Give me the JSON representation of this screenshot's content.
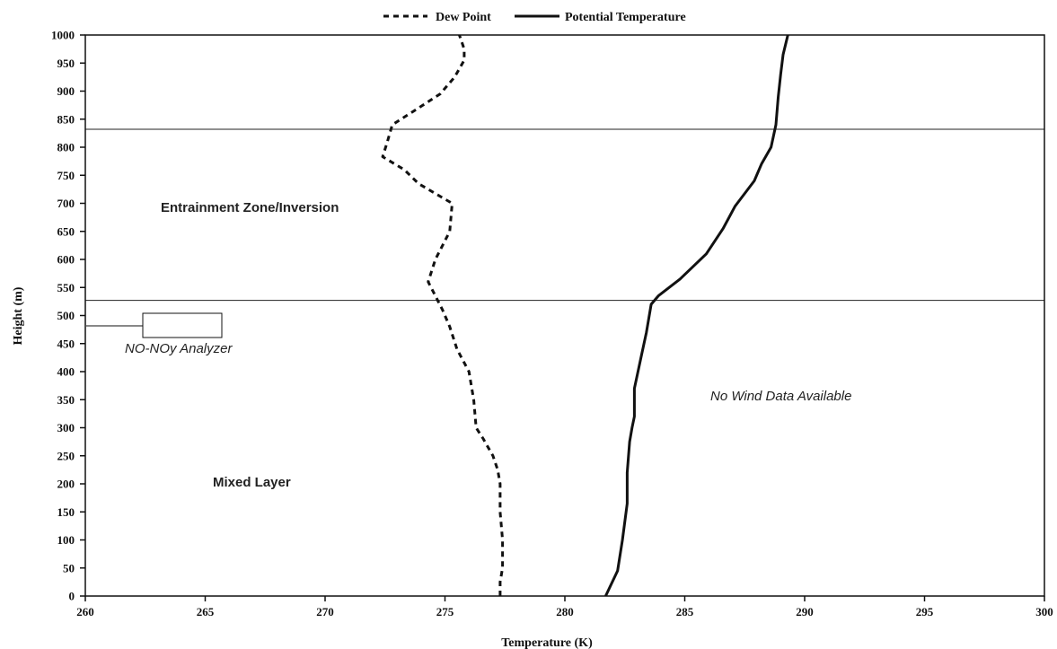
{
  "chart_data": {
    "type": "line",
    "xlabel": "Temperature (K)",
    "ylabel": "Height (m)",
    "xlim": [
      260,
      300
    ],
    "ylim": [
      0,
      1000
    ],
    "x_ticks": [
      "260",
      "265",
      "270",
      "275",
      "280",
      "285",
      "290",
      "295",
      "300"
    ],
    "y_ticks": [
      "0",
      "50",
      "100",
      "150",
      "200",
      "250",
      "300",
      "350",
      "400",
      "450",
      "500",
      "550",
      "600",
      "650",
      "700",
      "750",
      "800",
      "850",
      "900",
      "950",
      "1000"
    ],
    "legend_position": "top-center",
    "grid": false,
    "series": [
      {
        "name": "Dew Point",
        "style": "dashed",
        "color": "#111111",
        "points": [
          [
            277.3,
            0
          ],
          [
            277.3,
            25
          ],
          [
            277.4,
            50
          ],
          [
            277.4,
            100
          ],
          [
            277.3,
            150
          ],
          [
            277.3,
            200
          ],
          [
            277.2,
            225
          ],
          [
            277.0,
            250
          ],
          [
            276.6,
            280
          ],
          [
            276.3,
            300
          ],
          [
            276.2,
            350
          ],
          [
            276.0,
            400
          ],
          [
            275.5,
            440
          ],
          [
            275.2,
            480
          ],
          [
            274.9,
            510
          ],
          [
            274.6,
            535
          ],
          [
            274.3,
            560
          ],
          [
            274.6,
            600
          ],
          [
            275.2,
            650
          ],
          [
            275.3,
            700
          ],
          [
            274.9,
            710
          ],
          [
            273.9,
            735
          ],
          [
            273.3,
            760
          ],
          [
            272.4,
            783
          ],
          [
            272.6,
            810
          ],
          [
            272.8,
            840
          ],
          [
            273.9,
            870
          ],
          [
            274.8,
            895
          ],
          [
            275.4,
            925
          ],
          [
            275.8,
            955
          ],
          [
            275.8,
            975
          ],
          [
            275.6,
            1000
          ]
        ]
      },
      {
        "name": "Potential Temperature",
        "style": "solid",
        "color": "#111111",
        "points": [
          [
            281.7,
            0
          ],
          [
            282.2,
            45
          ],
          [
            282.4,
            100
          ],
          [
            282.6,
            165
          ],
          [
            282.6,
            220
          ],
          [
            282.7,
            275
          ],
          [
            282.8,
            300
          ],
          [
            282.9,
            320
          ],
          [
            282.9,
            370
          ],
          [
            283.2,
            430
          ],
          [
            283.4,
            470
          ],
          [
            283.6,
            520
          ],
          [
            283.9,
            535
          ],
          [
            284.8,
            565
          ],
          [
            285.9,
            610
          ],
          [
            286.6,
            655
          ],
          [
            287.1,
            695
          ],
          [
            287.9,
            740
          ],
          [
            288.2,
            770
          ],
          [
            288.6,
            800
          ],
          [
            288.8,
            840
          ],
          [
            288.9,
            890
          ],
          [
            289.0,
            930
          ],
          [
            289.1,
            965
          ],
          [
            289.3,
            1000
          ]
        ]
      }
    ],
    "horizontal_lines": [
      832,
      527
    ],
    "annotations": {
      "entrainment": "Entrainment Zone/Inversion",
      "mixed_layer": "Mixed Layer",
      "no_wind": "No Wind Data Available",
      "analyzer": "NO-NOy Analyzer"
    }
  }
}
